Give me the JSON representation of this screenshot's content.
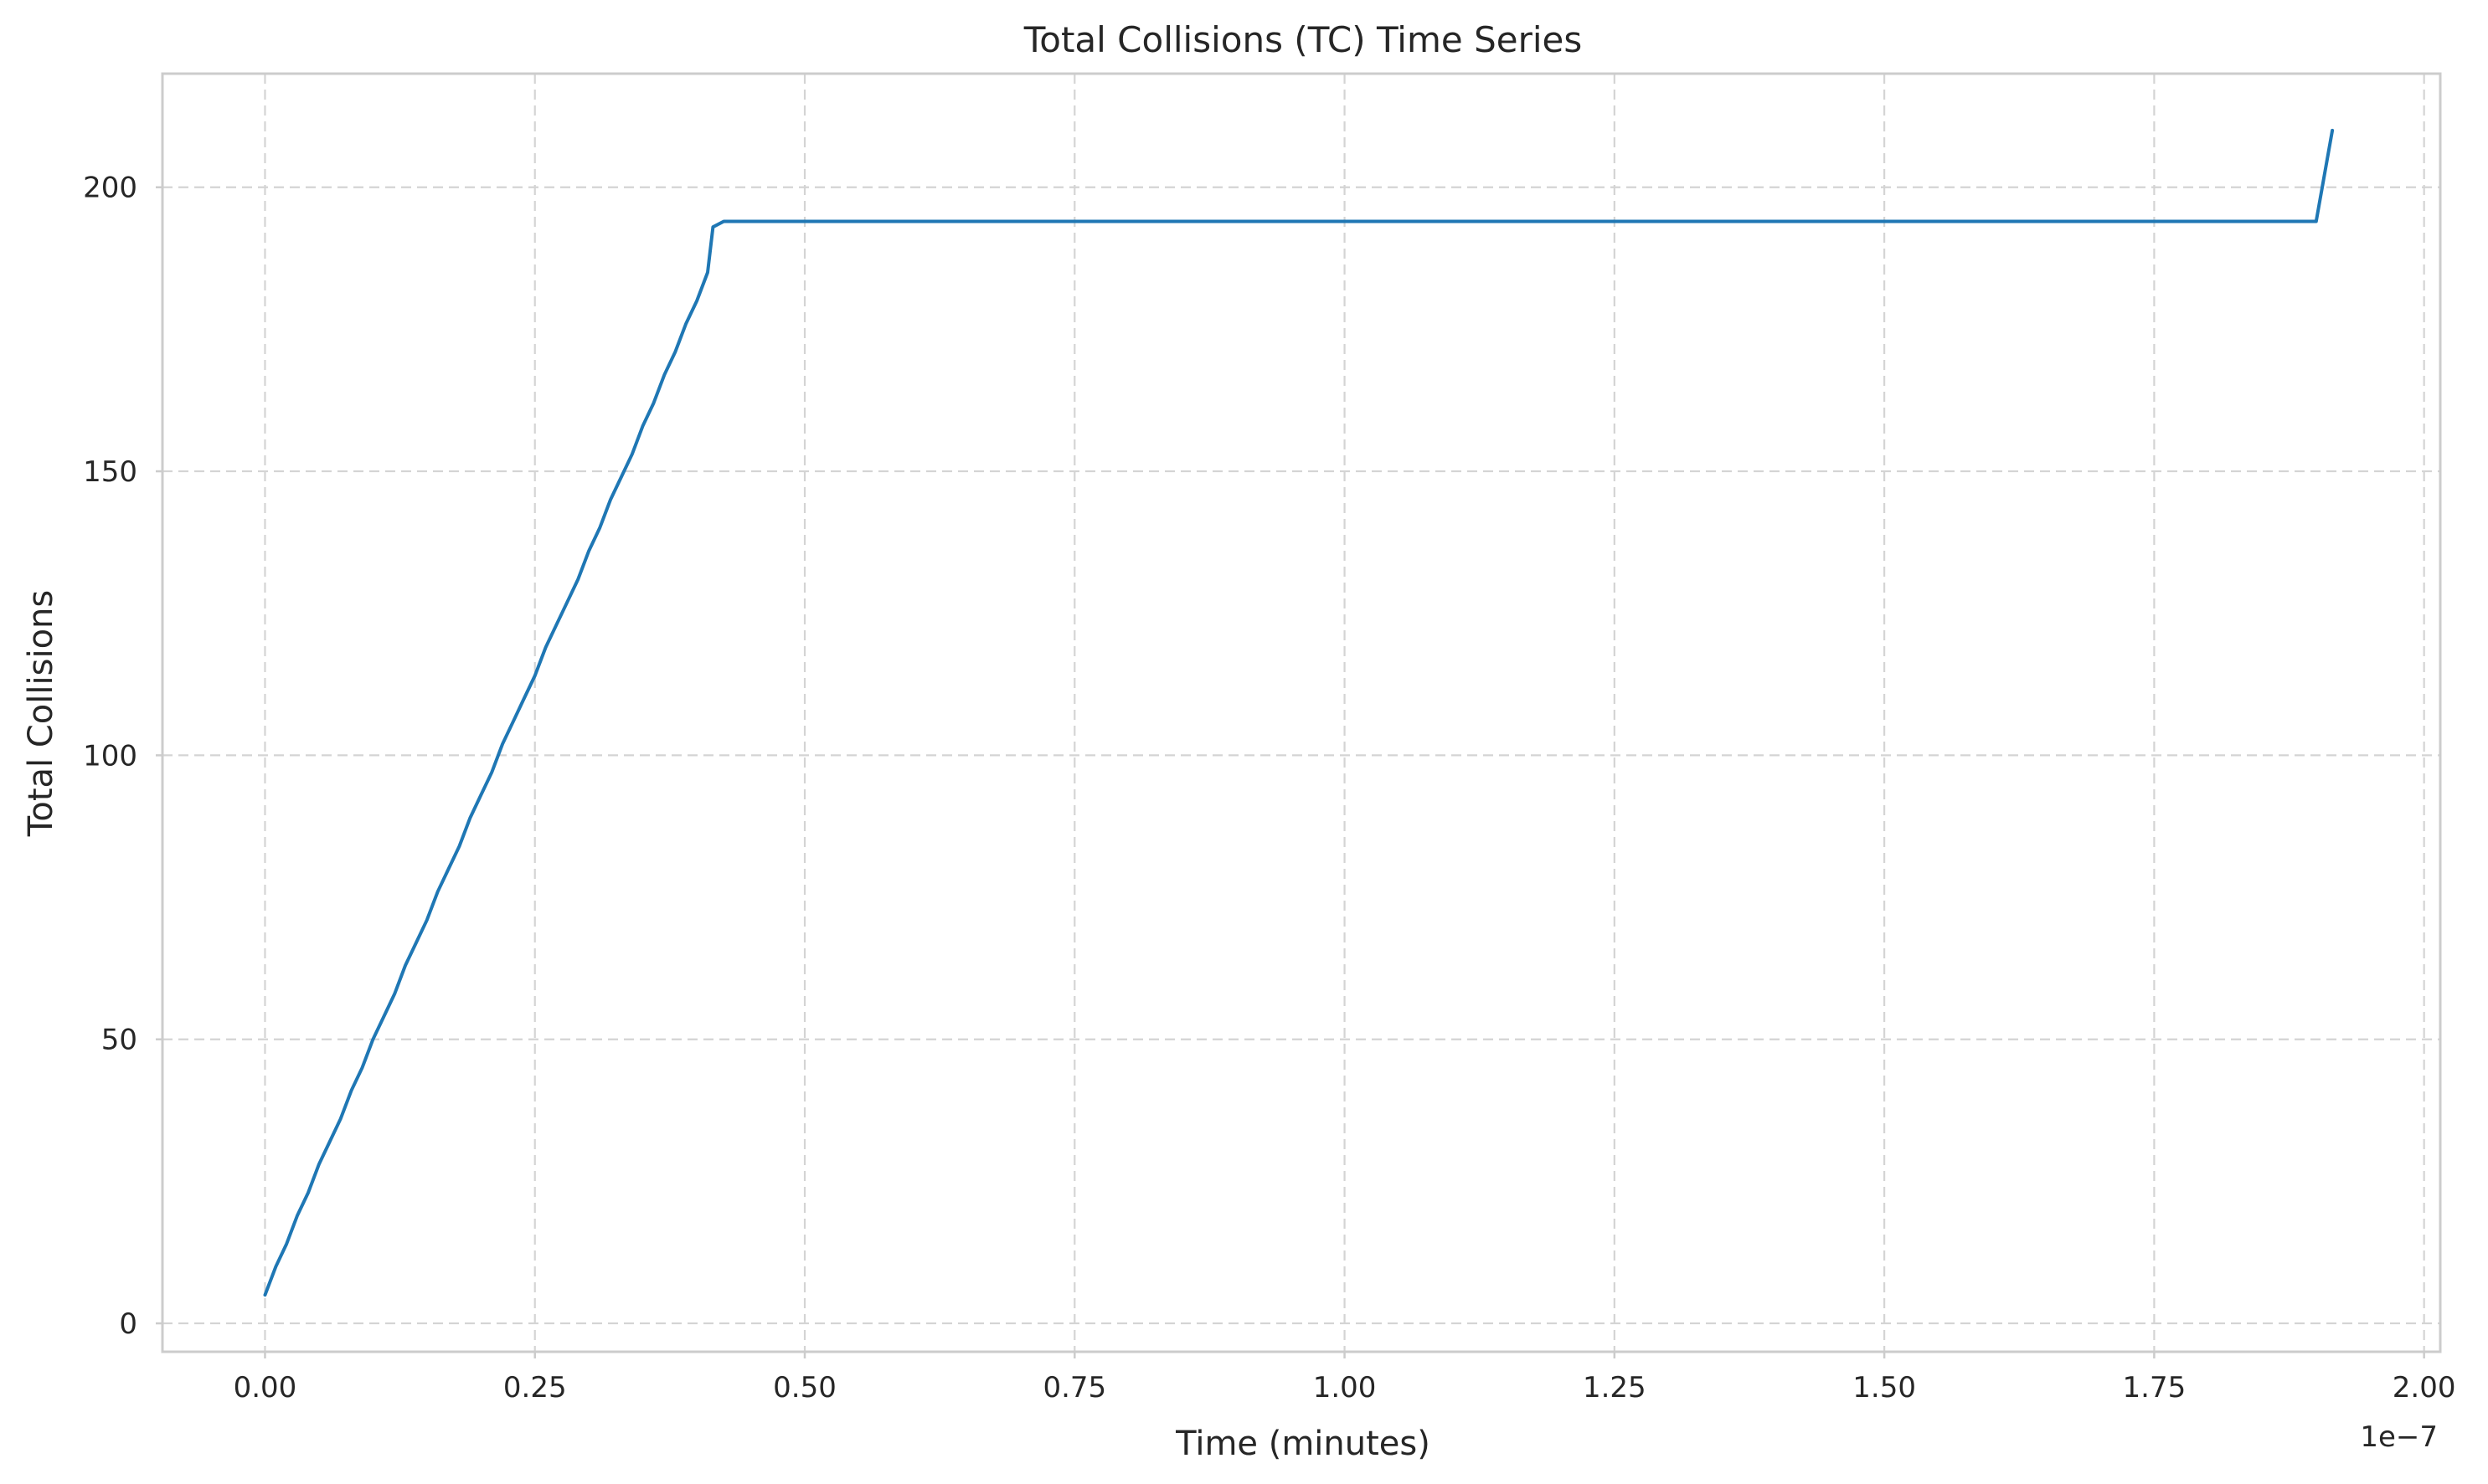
{
  "chart_data": {
    "type": "line",
    "title": "Total Collisions (TC) Time Series",
    "xlabel": "Time (minutes)",
    "ylabel": "Total Collisions",
    "x_offset_label": "1e−7",
    "xlim": [
      -0.095,
      2.015
    ],
    "ylim": [
      -5,
      220
    ],
    "x_ticks": [
      0.0,
      0.25,
      0.5,
      0.75,
      1.0,
      1.25,
      1.5,
      1.75,
      2.0
    ],
    "x_tick_labels": [
      "0.00",
      "0.25",
      "0.50",
      "0.75",
      "1.00",
      "1.25",
      "1.50",
      "1.75",
      "2.00"
    ],
    "y_ticks": [
      0,
      50,
      100,
      150,
      200
    ],
    "y_tick_labels": [
      "0",
      "50",
      "100",
      "150",
      "200"
    ],
    "grid": true,
    "colors": {
      "series": "#1f77b4"
    },
    "series": [
      {
        "x": [
          0.0,
          0.01,
          0.02,
          0.03,
          0.04,
          0.05,
          0.06,
          0.07,
          0.08,
          0.09,
          0.1,
          0.11,
          0.12,
          0.13,
          0.14,
          0.15,
          0.16,
          0.17,
          0.18,
          0.19,
          0.2,
          0.21,
          0.22,
          0.23,
          0.24,
          0.25,
          0.26,
          0.27,
          0.28,
          0.29,
          0.3,
          0.31,
          0.32,
          0.33,
          0.34,
          0.35,
          0.36,
          0.37,
          0.38,
          0.39,
          0.4,
          0.41,
          0.415,
          0.425,
          1.0,
          1.5,
          1.9,
          1.915
        ],
        "y": [
          5,
          10,
          14,
          19,
          23,
          28,
          32,
          36,
          41,
          45,
          50,
          54,
          58,
          63,
          67,
          71,
          76,
          80,
          84,
          89,
          93,
          97,
          102,
          106,
          110,
          114,
          119,
          123,
          127,
          131,
          136,
          140,
          145,
          149,
          153,
          158,
          162,
          167,
          171,
          176,
          180,
          185,
          193,
          194,
          194,
          194,
          194,
          210
        ]
      }
    ]
  }
}
